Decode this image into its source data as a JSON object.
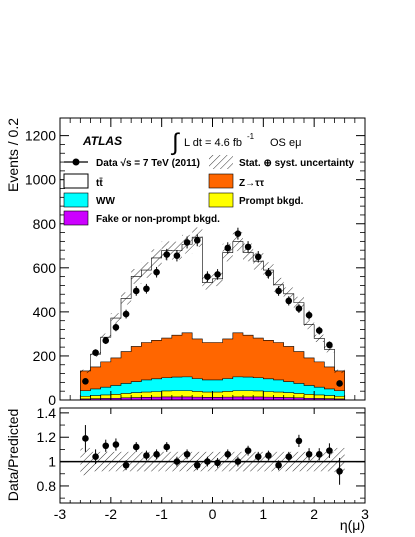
{
  "chart_data": [
    {
      "type": "area",
      "panel": "main",
      "stacked": true,
      "ylabel": "Events / 0.2",
      "ylim": [
        0,
        1280
      ],
      "xlim": [
        -3,
        3
      ],
      "yticks": [
        "0",
        "200",
        "400",
        "600",
        "800",
        "1000",
        "1200"
      ],
      "experiment_label": "ATLAS",
      "luminosity_label": "L dt = 4.6 fb",
      "luminosity_exponent": "-1",
      "channel_label": "OS eμ",
      "x": [
        -2.5,
        -2.3,
        -2.1,
        -1.9,
        -1.7,
        -1.5,
        -1.3,
        -1.1,
        -0.9,
        -0.7,
        -0.5,
        -0.3,
        -0.1,
        0.1,
        0.3,
        0.5,
        0.7,
        0.9,
        1.1,
        1.3,
        1.5,
        1.7,
        1.9,
        2.1,
        2.3,
        2.5
      ],
      "series": [
        {
          "name": "Fake or non-prompt bkgd.",
          "color": "#cc00ff",
          "values": [
            5,
            6,
            7,
            8,
            10,
            11,
            12,
            13,
            14,
            14,
            14,
            13,
            12,
            12,
            13,
            14,
            14,
            14,
            13,
            12,
            11,
            10,
            8,
            7,
            6,
            5
          ]
        },
        {
          "name": "Prompt bkgd.",
          "color": "#ffff00",
          "values": [
            12,
            14,
            16,
            18,
            20,
            22,
            24,
            25,
            27,
            28,
            28,
            26,
            24,
            24,
            26,
            28,
            28,
            27,
            25,
            24,
            22,
            20,
            18,
            16,
            14,
            12
          ]
        },
        {
          "name": "WW",
          "color": "#00ffff",
          "values": [
            25,
            30,
            35,
            40,
            45,
            50,
            55,
            58,
            60,
            62,
            63,
            58,
            55,
            55,
            58,
            63,
            62,
            60,
            58,
            55,
            50,
            45,
            40,
            35,
            30,
            25
          ]
        },
        {
          "name": "Z→ττ",
          "color": "#ff6600",
          "values": [
            90,
            100,
            115,
            125,
            145,
            160,
            170,
            175,
            180,
            190,
            200,
            180,
            170,
            170,
            180,
            200,
            190,
            180,
            175,
            170,
            160,
            145,
            125,
            115,
            100,
            90
          ]
        },
        {
          "name": "tt̄",
          "color": "#ffffff",
          "values": [
            -2,
            58,
            112,
            181,
            241,
            318,
            329,
            374,
            398,
            384,
            402,
            462,
            272,
            289,
            392,
            414,
            376,
            349,
            319,
            262,
            239,
            222,
            151,
            107,
            80,
            -2
          ]
        }
      ],
      "data_series": {
        "name": "Data  √s = 7 TeV (2011)",
        "values": [
          85,
          215,
          270,
          330,
          390,
          495,
          505,
          580,
          660,
          655,
          715,
          725,
          560,
          570,
          690,
          755,
          695,
          650,
          575,
          495,
          450,
          415,
          385,
          315,
          250,
          75
        ],
        "errors": [
          9,
          15,
          16,
          18,
          20,
          22,
          22,
          24,
          26,
          26,
          27,
          27,
          24,
          24,
          26,
          27,
          26,
          26,
          24,
          22,
          21,
          20,
          20,
          18,
          16,
          9
        ]
      },
      "uncertainty_label": "Stat. ⊕ syst. uncertainty",
      "uncertainty_fraction": 0.06,
      "legend_placement": "top"
    },
    {
      "type": "scatter",
      "panel": "ratio",
      "ylabel": "Data/Predicted",
      "xlabel": "η(μ)",
      "xlim": [
        -3,
        3
      ],
      "ylim": [
        0.66,
        1.44
      ],
      "yticks": [
        "0.8",
        "1",
        "1.2",
        "1.4"
      ],
      "xticks": [
        "-3",
        "-2",
        "-1",
        "0",
        "1",
        "2",
        "3"
      ],
      "reference_line": 1,
      "x": [
        -2.5,
        -2.3,
        -2.1,
        -1.9,
        -1.7,
        -1.5,
        -1.3,
        -1.1,
        -0.9,
        -0.7,
        -0.5,
        -0.3,
        -0.1,
        0.1,
        0.3,
        0.5,
        0.7,
        0.9,
        1.1,
        1.3,
        1.5,
        1.7,
        1.9,
        2.1,
        2.3,
        2.5
      ],
      "values": [
        1.19,
        1.04,
        1.13,
        1.14,
        0.97,
        1.12,
        1.05,
        1.06,
        1.12,
        1.0,
        1.06,
        0.97,
        1.0,
        0.99,
        1.06,
        1.0,
        1.09,
        1.04,
        1.05,
        0.97,
        1.04,
        1.17,
        1.06,
        1.06,
        1.09,
        0.92
      ],
      "errors": [
        0.11,
        0.06,
        0.05,
        0.05,
        0.04,
        0.04,
        0.04,
        0.04,
        0.04,
        0.04,
        0.04,
        0.04,
        0.04,
        0.04,
        0.04,
        0.04,
        0.04,
        0.04,
        0.04,
        0.04,
        0.04,
        0.05,
        0.05,
        0.05,
        0.06,
        0.11
      ],
      "band_halfwidth": 0.08
    }
  ]
}
